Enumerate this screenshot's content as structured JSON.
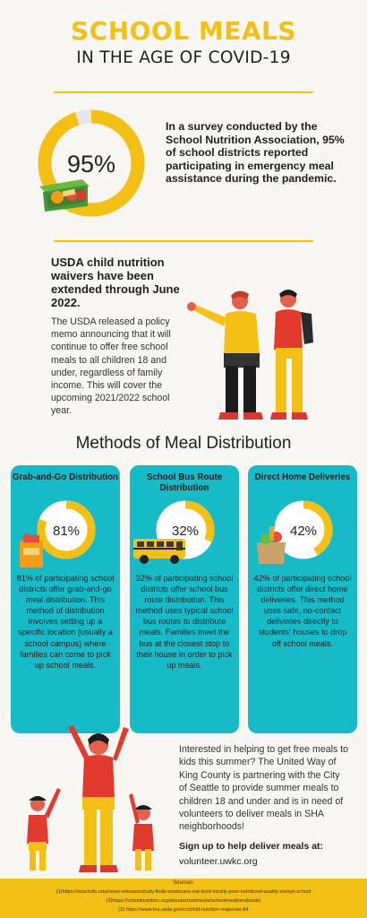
{
  "header": {
    "title": "SCHOOL MEALS",
    "subtitle": "IN THE AGE OF COVID-19"
  },
  "colors": {
    "accent_yellow": "#f5c016",
    "teal": "#17bbc7",
    "ring_track": "#e6e6e6",
    "background": "#f7f6f3"
  },
  "stat": {
    "percent_label": "95%",
    "percent_value": 95,
    "text": "In a survey conducted by the School Nutrition Association, 95% of school districts reported participating in emergency meal assistance during the pandemic."
  },
  "waiver": {
    "heading": "USDA child nutrition waivers have been extended through June 2022.",
    "body": "The USDA released a policy memo announcing that it will continue to offer free school meals to all children 18 and under, regardless of family income. This will cover the upcoming 2021/2022 school year."
  },
  "methods": {
    "title": "Methods of Meal Distribution",
    "cards": [
      {
        "title": "Grab-and-Go Distribution",
        "percent_label": "81%",
        "percent_value": 81,
        "icon": "grocery-bag-icon",
        "text": "81% of participating school districts offer grab-and-go meal distribution. This method of distribution involves setting up a specific location (usually a school campus) where families can come to pick up school meals."
      },
      {
        "title": "School Bus Route Distribution",
        "percent_label": "32%",
        "percent_value": 32,
        "icon": "school-bus-icon",
        "text": "32% of participating school districts offer school bus route distribution. This method uses typical school bus routes to distribute meals. Families meet the bus at the closest stop to their house in order to pick up meals."
      },
      {
        "title": "Direct Home Deliveries",
        "percent_label": "42%",
        "percent_value": 42,
        "icon": "grocery-box-icon",
        "text": "42% of participating school districts offer direct home deliveries. This method uses safe, no-contact deliveries directly to students' houses to drop off school meals."
      }
    ]
  },
  "volunteer": {
    "text": "Interested in helping to get free meals to kids this summer? The United Way of King County is partnering with the City of Seattle to provide summer meals to children 18 and under and is in need of volunteers to deliver meals in SHA neighborhoods!",
    "signup_heading": "Sign up to help deliver meals at:",
    "signup_url": "volunteer.uwkc.org"
  },
  "sources": {
    "heading": "Sources:",
    "items": [
      "(1)https://now.tufts.edu/news-releases/study-finds-americans-eat-food-mostly-poor-nutritional-quality-except-school",
      "(2)https://schoolnutrition.org/aboutschoolmeals/schoolmealtrendsstats",
      "(3) https://www.fns.usda.gov/cn/child-nutrition-response-84"
    ]
  }
}
